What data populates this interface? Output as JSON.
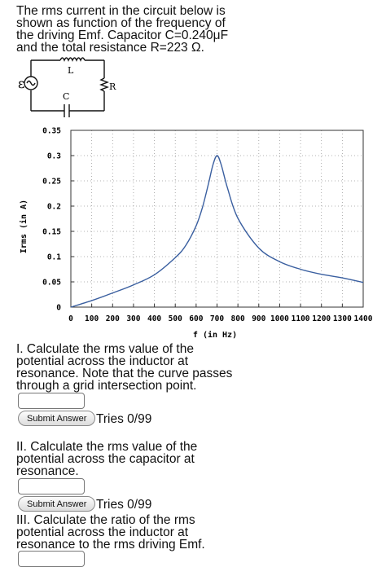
{
  "intro": {
    "text": "The rms current in the circuit below is\nshown as function of the frequency of\nthe driving Emf. Capacitor C=0.240μF\nand the total resistance R=223 Ω."
  },
  "circuit": {
    "emf_label": "ε",
    "inductor_label": "L",
    "capacitor_label": "C",
    "resistor_label": "R"
  },
  "chart_data": {
    "type": "line",
    "xlabel": "f (in Hz)",
    "ylabel": "Irms (in A)",
    "xlim": [
      0,
      1400
    ],
    "ylim": [
      0,
      0.35
    ],
    "x_ticks": [
      0,
      100,
      200,
      300,
      400,
      500,
      600,
      700,
      800,
      900,
      1000,
      1100,
      1200,
      1300,
      1400
    ],
    "x_tick_labels": [
      "0",
      "100",
      "200",
      "300",
      "400",
      "500",
      "600",
      "700",
      "800",
      "900",
      "1000",
      "1100",
      "1200",
      "1300",
      "1400"
    ],
    "y_ticks": [
      0,
      0.05,
      0.1,
      0.15,
      0.2,
      0.25,
      0.3,
      0.35
    ],
    "y_tick_labels": [
      "0",
      "0.05",
      "0.1",
      "0.15",
      "0.2",
      "0.25",
      "0.3",
      "0.35"
    ],
    "grid": true,
    "series": [
      {
        "color": "#3a5fa0",
        "x": [
          0,
          100,
          200,
          300,
          400,
          500,
          550,
          600,
          630,
          660,
          680,
          700,
          720,
          750,
          800,
          900,
          1000,
          1100,
          1200,
          1300,
          1400
        ],
        "y": [
          0,
          0.013,
          0.028,
          0.044,
          0.064,
          0.098,
          0.122,
          0.161,
          0.197,
          0.246,
          0.281,
          0.3,
          0.282,
          0.236,
          0.176,
          0.117,
          0.09,
          0.075,
          0.065,
          0.058,
          0.049
        ]
      }
    ]
  },
  "questions": [
    {
      "text": "I. Calculate the rms value of the\npotential across the inductor at\nresonance. Note that the curve passes\nthrough a grid intersection point.",
      "input_value": "",
      "submit_label": "Submit Answer",
      "tries": "Tries 0/99"
    },
    {
      "text": "II. Calculate the rms value of the\npotential across the capacitor at\nresonance.",
      "input_value": "",
      "submit_label": "Submit Answer",
      "tries": "Tries 0/99"
    },
    {
      "text": "III. Calculate the ratio of the rms\npotential across the inductor at\nresonance to the rms driving Emf.",
      "input_value": ""
    }
  ]
}
